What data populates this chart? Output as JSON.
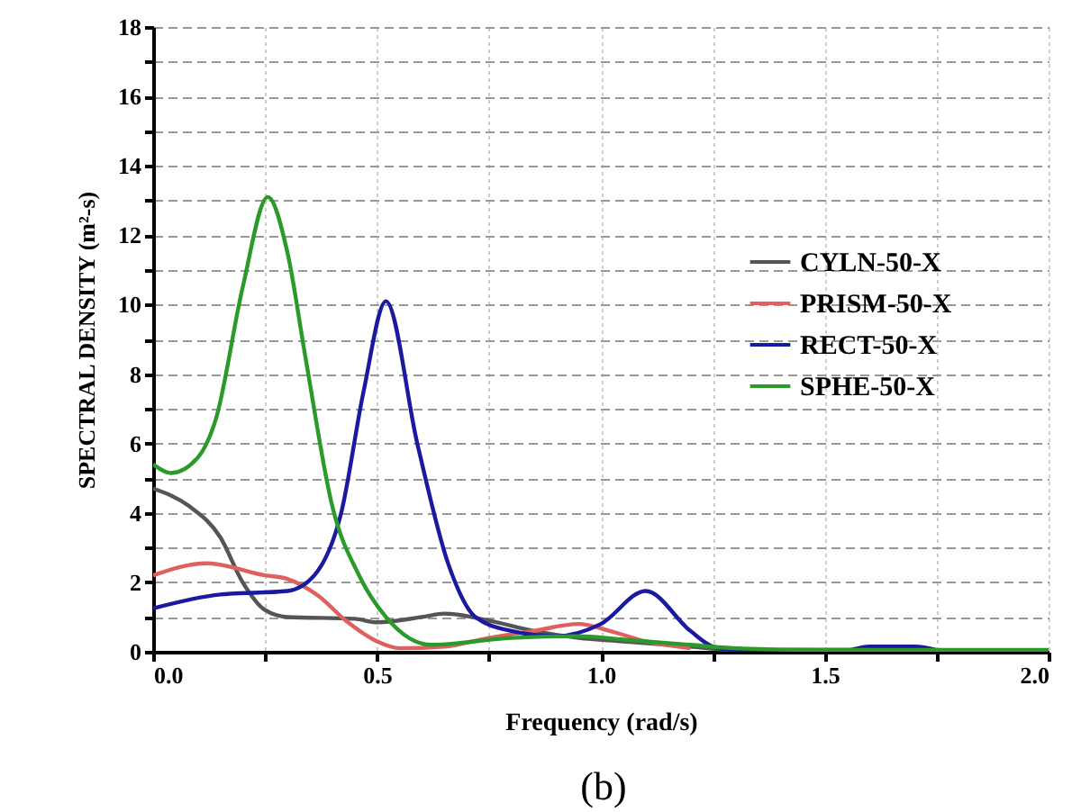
{
  "chart_data": {
    "type": "line",
    "xlabel": "Frequency (rad/s)",
    "ylabel": "SPECTRAL DENSITY (m²-s)",
    "annotations": [
      "(b)"
    ],
    "xlim": [
      0,
      2.0
    ],
    "ylim": [
      0,
      18
    ],
    "xticks": [
      {
        "value": 0,
        "label": "0.0"
      },
      {
        "value": 0.25,
        "label": null
      },
      0.5,
      {
        "value": 0.75,
        "label": null
      },
      {
        "value": 1,
        "label": "1.0"
      },
      {
        "value": 1.25,
        "label": null
      },
      1.5,
      {
        "value": 1.75,
        "label": null
      },
      {
        "value": 2,
        "label": "2.0"
      }
    ],
    "yticks": [
      0,
      {
        "value": 1,
        "label": null
      },
      2,
      {
        "value": 3,
        "label": null
      },
      4,
      {
        "value": 5,
        "label": null
      },
      6,
      {
        "value": 7,
        "label": null
      },
      8,
      {
        "value": 9,
        "label": null
      },
      10,
      {
        "value": 11,
        "label": null
      },
      12,
      {
        "value": 13,
        "label": null
      },
      14,
      {
        "value": 15,
        "label": null
      },
      16,
      {
        "value": 17,
        "label": null
      },
      18
    ],
    "grid": true,
    "legend": "right",
    "line_style": "solid",
    "series": [
      {
        "name": "CYLN-50-X",
        "color": "#555555",
        "x": [
          0,
          0.08,
          0.15,
          0.2,
          0.25,
          0.3,
          0.45,
          0.5,
          0.6,
          0.65,
          0.75,
          0.85,
          0.95,
          1.05,
          1.2,
          1.3,
          1.5,
          2.0
        ],
        "values": [
          4.7,
          4.2,
          3.3,
          2.0,
          1.2,
          1.0,
          0.95,
          0.85,
          1.0,
          1.1,
          0.9,
          0.6,
          0.4,
          0.3,
          0.15,
          0.05,
          0.03,
          0.03
        ]
      },
      {
        "name": "PRISM-50-X",
        "color": "#e06060",
        "x": [
          0,
          0.12,
          0.25,
          0.3,
          0.37,
          0.43,
          0.5,
          0.55,
          0.65,
          0.75,
          0.85,
          0.95,
          1.02,
          1.1,
          1.2
        ],
        "values": [
          2.2,
          2.55,
          2.2,
          2.1,
          1.6,
          0.9,
          0.3,
          0.1,
          0.15,
          0.4,
          0.6,
          0.8,
          0.6,
          0.3,
          0.1
        ]
      },
      {
        "name": "RECT-50-X",
        "color": "#1a1aa0",
        "x": [
          0,
          0.15,
          0.3,
          0.36,
          0.42,
          0.47,
          0.52,
          0.59,
          0.66,
          0.72,
          0.8,
          0.9,
          1.0,
          1.1,
          1.2,
          1.25,
          1.3,
          1.55,
          1.6,
          1.7,
          1.75
        ],
        "values": [
          1.25,
          1.65,
          1.75,
          2.2,
          4.0,
          7.5,
          10.1,
          6.0,
          2.5,
          1.0,
          0.6,
          0.45,
          0.8,
          1.75,
          0.6,
          0.15,
          0.05,
          0.05,
          0.15,
          0.15,
          0.05
        ]
      },
      {
        "name": "SPHE-50-X",
        "color": "#2a9a2a",
        "x": [
          0,
          0.04,
          0.1,
          0.14,
          0.2,
          0.256,
          0.3,
          0.34,
          0.4,
          0.46,
          0.52,
          0.62,
          0.8,
          0.95,
          1.05,
          1.2,
          1.3,
          1.5,
          2.0
        ],
        "values": [
          5.4,
          5.15,
          5.6,
          6.7,
          10.5,
          13.1,
          11.5,
          8.5,
          4.2,
          2.2,
          1.0,
          0.2,
          0.4,
          0.45,
          0.35,
          0.2,
          0.1,
          0.05,
          0.05
        ]
      }
    ]
  }
}
